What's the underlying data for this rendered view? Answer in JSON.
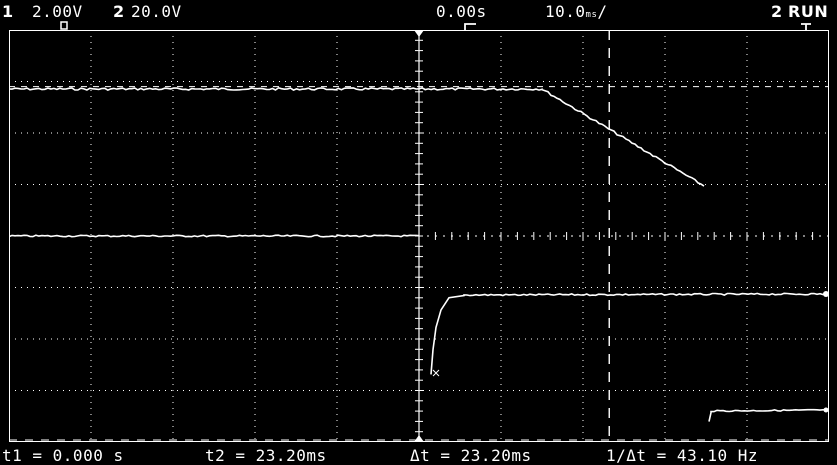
{
  "header": {
    "ch1_number": "1",
    "ch1_coupling_icon": "dc-coupling-icon",
    "ch1_scale": "2.00V",
    "ch2_number": "2",
    "ch2_scale": "20.0V",
    "trigger_edge_icon": "rising-edge-icon",
    "time_delay": "0.00s",
    "time_base_value": "10.0",
    "time_base_unit": "ms",
    "trigger_source": "2",
    "run_state": "RUN"
  },
  "readout": {
    "t1": "t1 = 0.000 s",
    "t2": "t2 = 23.20ms",
    "delta_t": "Δt = 23.20ms",
    "inv_delta_t": "1/Δt = 43.10 Hz"
  },
  "colors": {
    "background": "#000000",
    "trace": "#ffffff",
    "grid": "#ffffff"
  },
  "display": {
    "grid_divisions": [
      10,
      8
    ],
    "cursor_t1_time_ms": 0.0,
    "cursor_t2_time_ms": 23.2
  }
}
